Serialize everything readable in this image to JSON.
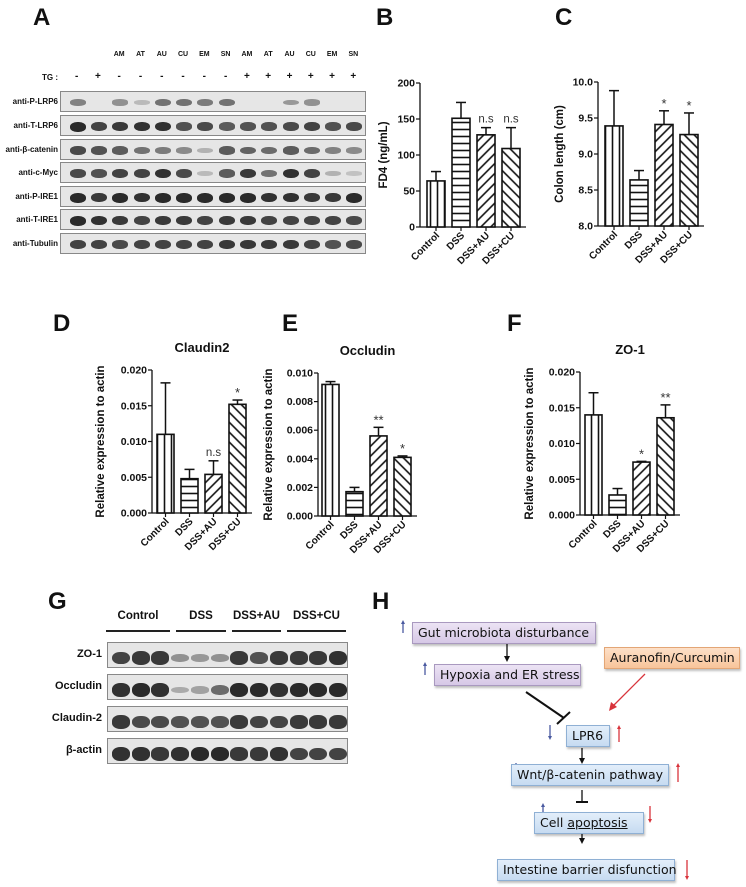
{
  "panels": {
    "A": {
      "label": "A",
      "lane_headers": [
        "",
        "",
        "AM",
        "AT",
        "AU",
        "CU",
        "EM",
        "SN",
        "AM",
        "AT",
        "AU",
        "CU",
        "EM",
        "SN"
      ],
      "tg_label": "TG :",
      "tg_signs": [
        "-",
        "+",
        "-",
        "-",
        "-",
        "-",
        "-",
        "-",
        "+",
        "+",
        "+",
        "+",
        "+",
        "+"
      ],
      "rows": [
        {
          "label": "anti-P-LRP6",
          "intensity": [
            0.45,
            0.0,
            0.35,
            0.1,
            0.55,
            0.55,
            0.5,
            0.55,
            0.0,
            0.0,
            0.3,
            0.35,
            0.0,
            0.0
          ]
        },
        {
          "label": "anti-T-LRP6",
          "intensity": [
            1.0,
            0.85,
            0.9,
            0.95,
            0.95,
            0.75,
            0.8,
            0.7,
            0.75,
            0.75,
            0.8,
            0.85,
            0.75,
            0.8
          ]
        },
        {
          "label": "anti-β-catenin",
          "intensity": [
            0.8,
            0.75,
            0.7,
            0.55,
            0.5,
            0.4,
            0.15,
            0.7,
            0.65,
            0.6,
            0.7,
            0.6,
            0.45,
            0.4
          ]
        },
        {
          "label": "anti-c-Myc",
          "intensity": [
            0.8,
            0.75,
            0.85,
            0.85,
            0.95,
            0.8,
            0.1,
            0.7,
            0.9,
            0.55,
            0.95,
            0.85,
            0.15,
            0.05
          ]
        },
        {
          "label": "anti-P-IRE1",
          "intensity": [
            1.0,
            0.9,
            1.0,
            0.95,
            1.0,
            1.0,
            1.0,
            1.0,
            1.0,
            0.95,
            0.95,
            0.9,
            0.9,
            1.0
          ]
        },
        {
          "label": "anti-T-IRE1",
          "intensity": [
            1.0,
            0.95,
            0.9,
            0.85,
            0.9,
            0.9,
            0.85,
            0.9,
            0.9,
            0.85,
            0.85,
            0.85,
            0.85,
            0.8
          ]
        },
        {
          "label": "anti-Tubulin",
          "intensity": [
            0.85,
            0.85,
            0.8,
            0.85,
            0.85,
            0.85,
            0.85,
            0.9,
            0.9,
            0.9,
            0.9,
            0.85,
            0.75,
            0.8
          ]
        }
      ]
    },
    "B": {
      "label": "B"
    },
    "C": {
      "label": "C"
    },
    "D": {
      "label": "D"
    },
    "E": {
      "label": "E"
    },
    "F": {
      "label": "F"
    },
    "G": {
      "label": "G",
      "groups": [
        "Control",
        "DSS",
        "DSS+AU",
        "DSS+CU"
      ],
      "rows": [
        {
          "label": "ZO-1",
          "intensity": [
            0.85,
            0.9,
            0.9,
            0.35,
            0.3,
            0.35,
            0.9,
            0.75,
            0.9,
            0.9,
            0.9,
            0.95
          ]
        },
        {
          "label": "Occludin",
          "intensity": [
            0.95,
            1.0,
            0.95,
            0.2,
            0.25,
            0.6,
            1.0,
            1.0,
            0.95,
            1.0,
            1.0,
            1.0
          ]
        },
        {
          "label": "Claudin-2",
          "intensity": [
            0.9,
            0.8,
            0.8,
            0.75,
            0.75,
            0.75,
            0.9,
            0.85,
            0.85,
            0.9,
            0.9,
            0.9
          ]
        },
        {
          "label": "β-actin",
          "intensity": [
            0.95,
            0.95,
            0.9,
            0.95,
            1.0,
            1.0,
            0.9,
            0.9,
            0.95,
            0.85,
            0.85,
            0.85
          ]
        }
      ]
    },
    "H": {
      "label": "H",
      "nodes": {
        "gut": "Gut microbiota disturbance",
        "hypoxia": "Hypoxia and ER stress",
        "drug": "Auranofin/Curcumin",
        "lpr6": "LPR6",
        "wnt": "Wnt/β-catenin pathway",
        "cell_prefix": "Cell ",
        "cell_underlined": "apoptosis",
        "barrier": "Intestine barrier disfunction"
      },
      "colors": {
        "disease_arrow": "#4a5aa0",
        "treatment_arrow": "#d8343c",
        "inhibit": "#111111"
      }
    }
  },
  "chart_data": [
    {
      "panel": "B",
      "type": "bar",
      "title": "",
      "categories": [
        "Control",
        "DSS",
        "DSS+AU",
        "DSS+CU"
      ],
      "values": [
        64,
        151,
        128,
        109
      ],
      "errors": [
        13,
        22,
        10,
        29
      ],
      "annotations": [
        "",
        "",
        "n.s",
        "n.s"
      ],
      "patterns": [
        "vertical",
        "horizontal",
        "diag-up",
        "diag-down"
      ],
      "xlabel": "",
      "ylabel": "FD4 (ng/mL)",
      "ylim": [
        0,
        200
      ],
      "yticks": [
        "0",
        "50",
        "100",
        "150",
        "200"
      ]
    },
    {
      "panel": "C",
      "type": "bar",
      "title": "",
      "categories": [
        "Control",
        "DSS",
        "DSS+AU",
        "DSS+CU"
      ],
      "values": [
        9.39,
        8.64,
        9.41,
        9.27
      ],
      "errors": [
        0.49,
        0.13,
        0.19,
        0.3
      ],
      "annotations": [
        "",
        "",
        "*",
        "*"
      ],
      "patterns": [
        "vertical",
        "horizontal",
        "diag-up",
        "diag-down"
      ],
      "xlabel": "",
      "ylabel": "Colon length (cm)",
      "ylim": [
        8.0,
        10.0
      ],
      "yticks": [
        "8.0",
        "8.5",
        "9.0",
        "9.5",
        "10.0"
      ]
    },
    {
      "panel": "D",
      "type": "bar",
      "title": "Claudin2",
      "categories": [
        "Control",
        "DSS",
        "DSS+AU",
        "DSS+CU"
      ],
      "values": [
        0.011,
        0.0048,
        0.0054,
        0.0152
      ],
      "errors": [
        0.0072,
        0.0013,
        0.0019,
        0.0006
      ],
      "annotations": [
        "",
        "",
        "n.s",
        "*"
      ],
      "patterns": [
        "vertical",
        "horizontal",
        "diag-up",
        "diag-down"
      ],
      "xlabel": "",
      "ylabel": "Relative expression to actin",
      "ylim": [
        0,
        0.02
      ],
      "yticks": [
        "0.000",
        "0.005",
        "0.010",
        "0.015",
        "0.020"
      ]
    },
    {
      "panel": "E",
      "type": "bar",
      "title": "Occludin",
      "categories": [
        "Control",
        "DSS",
        "DSS+AU",
        "DSS+CU"
      ],
      "values": [
        0.0092,
        0.0017,
        0.0056,
        0.0041
      ],
      "errors": [
        0.0002,
        0.0003,
        0.0006,
        0.0001
      ],
      "annotations": [
        "",
        "",
        "**",
        "*"
      ],
      "patterns": [
        "vertical",
        "horizontal",
        "diag-up",
        "diag-down"
      ],
      "xlabel": "",
      "ylabel": "Relative expression to actin",
      "ylim": [
        0,
        0.01
      ],
      "yticks": [
        "0.000",
        "0.002",
        "0.004",
        "0.006",
        "0.008",
        "0.010"
      ]
    },
    {
      "panel": "F",
      "type": "bar",
      "title": "ZO-1",
      "categories": [
        "Control",
        "DSS",
        "DSS+AU",
        "DSS+CU"
      ],
      "values": [
        0.014,
        0.0028,
        0.0074,
        0.0136
      ],
      "errors": [
        0.0031,
        0.0009,
        0.0001,
        0.0018
      ],
      "annotations": [
        "",
        "",
        "*",
        "**"
      ],
      "patterns": [
        "vertical",
        "horizontal",
        "diag-up",
        "diag-down"
      ],
      "xlabel": "",
      "ylabel": "Relative expression to actin",
      "ylim": [
        0,
        0.02
      ],
      "yticks": [
        "0.000",
        "0.005",
        "0.010",
        "0.015",
        "0.020"
      ]
    }
  ]
}
